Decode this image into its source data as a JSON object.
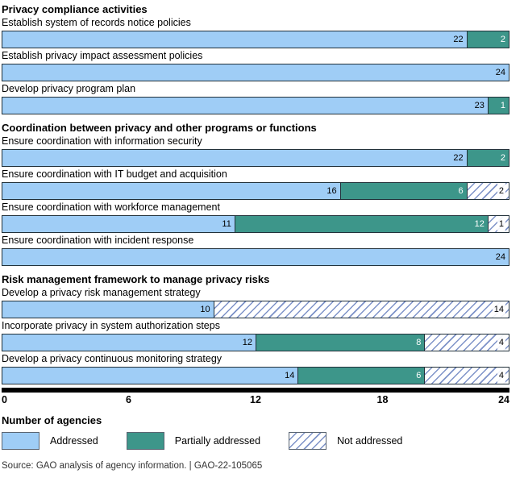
{
  "chart_data": {
    "type": "bar",
    "orientation": "horizontal-stacked",
    "xlabel": "Number of agencies",
    "xlim": [
      0,
      24
    ],
    "x_ticks": [
      0,
      6,
      12,
      18,
      24
    ],
    "grid": false,
    "legend_position": "bottom",
    "series_keys": [
      "addressed",
      "partially_addressed",
      "not_addressed"
    ],
    "sections": [
      {
        "header": "Privacy compliance activities",
        "rows": [
          {
            "label": "Establish system of records notice policies",
            "addressed": 22,
            "partially_addressed": 2,
            "not_addressed": 0
          },
          {
            "label": "Establish privacy impact assessment policies",
            "addressed": 24,
            "partially_addressed": 0,
            "not_addressed": 0
          },
          {
            "label": "Develop privacy program plan",
            "addressed": 23,
            "partially_addressed": 1,
            "not_addressed": 0
          }
        ]
      },
      {
        "header": "Coordination between privacy and other programs or functions",
        "rows": [
          {
            "label": "Ensure coordination with information security",
            "addressed": 22,
            "partially_addressed": 2,
            "not_addressed": 0
          },
          {
            "label": "Ensure coordination with IT budget and acquisition",
            "addressed": 16,
            "partially_addressed": 6,
            "not_addressed": 2
          },
          {
            "label": "Ensure coordination with workforce management",
            "addressed": 11,
            "partially_addressed": 12,
            "not_addressed": 1
          },
          {
            "label": "Ensure coordination with incident response",
            "addressed": 24,
            "partially_addressed": 0,
            "not_addressed": 0
          }
        ]
      },
      {
        "header": "Risk management framework to manage privacy risks",
        "rows": [
          {
            "label": "Develop a privacy risk management strategy",
            "addressed": 10,
            "partially_addressed": 0,
            "not_addressed": 14
          },
          {
            "label": "Incorporate privacy in system authorization steps",
            "addressed": 12,
            "partially_addressed": 8,
            "not_addressed": 4
          },
          {
            "label": "Develop a privacy continuous monitoring strategy",
            "addressed": 14,
            "partially_addressed": 6,
            "not_addressed": 4
          }
        ]
      }
    ]
  },
  "legend": {
    "items": [
      {
        "key": "addressed",
        "label": "Addressed"
      },
      {
        "key": "partially_addressed",
        "label": "Partially addressed"
      },
      {
        "key": "not_addressed",
        "label": "Not addressed"
      }
    ]
  },
  "colors": {
    "addressed": "#9fcdf6",
    "partially_addressed": "#3d968a",
    "not_addressed_bg": "#ffffff",
    "not_addressed_line": "#7d92c8",
    "bar_border": "#22313a",
    "axis": "#000000",
    "value_text_on_addressed": "#000000",
    "value_text_on_partially": "#ffffff",
    "value_text_on_not": "#000000"
  },
  "source_line": "Source: GAO analysis of agency information.  |  GAO-22-105065"
}
